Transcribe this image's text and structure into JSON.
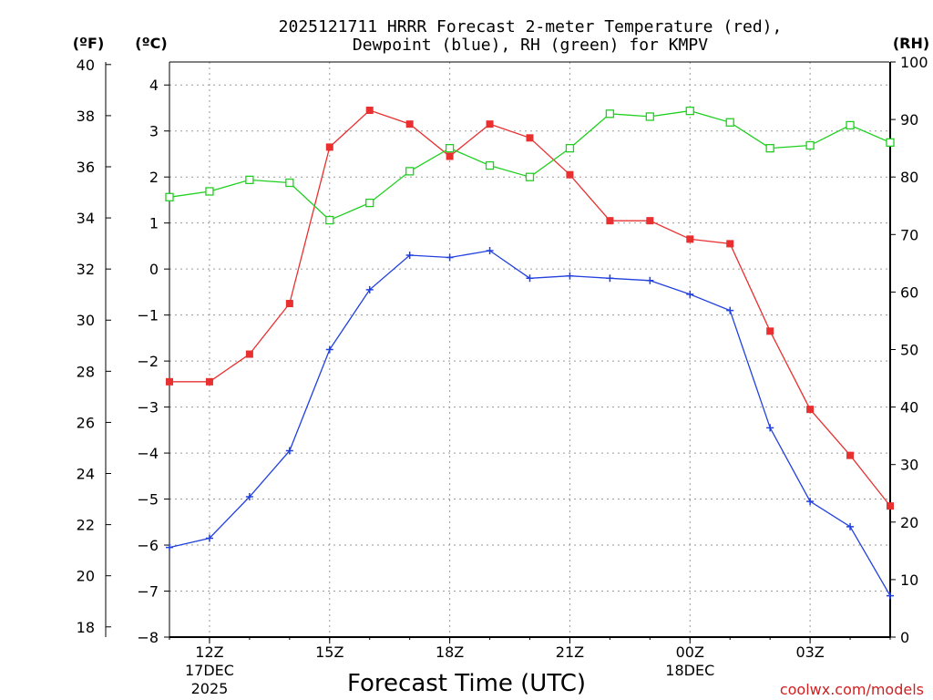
{
  "chart_data": {
    "type": "line",
    "title_line1": "2025121711 HRRR Forecast 2-meter Temperature (red),",
    "title_line2": "Dewpoint (blue), RH (green) for KMPV",
    "left_outer_unit": "(ºF)",
    "left_inner_unit": "(ºC)",
    "right_unit": "(RH)",
    "xlabel": "Forecast Time (UTC)",
    "credit": "coolwx.com/models",
    "xlim": [
      11,
      29
    ],
    "ylim_c": [
      -8,
      4.5
    ],
    "ylim_rh": [
      0,
      100
    ],
    "celsius_ticks": [
      "4",
      "3",
      "2",
      "1",
      "0",
      "−1",
      "−2",
      "−3",
      "−4",
      "−5",
      "−6",
      "−7",
      "−8"
    ],
    "fahrenheit_ticks": [
      "40",
      "38",
      "36",
      "34",
      "32",
      "30",
      "28",
      "26",
      "24",
      "22",
      "20",
      "18"
    ],
    "rh_ticks": [
      "100",
      "90",
      "80",
      "70",
      "60",
      "50",
      "40",
      "30",
      "20",
      "10",
      "0"
    ],
    "x_ticks": [
      {
        "hour": 12,
        "label": "12Z",
        "sub1": "17DEC",
        "sub2": "2025"
      },
      {
        "hour": 15,
        "label": "15Z",
        "sub1": "",
        "sub2": ""
      },
      {
        "hour": 18,
        "label": "18Z",
        "sub1": "",
        "sub2": ""
      },
      {
        "hour": 21,
        "label": "21Z",
        "sub1": "",
        "sub2": ""
      },
      {
        "hour": 24,
        "label": "00Z",
        "sub1": "18DEC",
        "sub2": ""
      },
      {
        "hour": 27,
        "label": "03Z",
        "sub1": "",
        "sub2": ""
      }
    ],
    "hours": [
      11,
      12,
      13,
      14,
      15,
      16,
      17,
      18,
      19,
      20,
      21,
      22,
      23,
      24,
      25,
      26,
      27,
      28,
      29
    ],
    "series": [
      {
        "name": "Temperature",
        "color": "#e83030",
        "unit": "C",
        "marker": "filled-square",
        "values": [
          -2.45,
          -2.45,
          -1.85,
          -0.75,
          2.65,
          3.45,
          3.15,
          2.45,
          3.15,
          2.85,
          2.05,
          1.05,
          1.05,
          0.65,
          0.55,
          -1.35,
          -3.05,
          -4.05,
          -5.15
        ]
      },
      {
        "name": "Dewpoint",
        "color": "#2040e0",
        "unit": "C",
        "marker": "plus",
        "values": [
          -6.05,
          -5.85,
          -4.95,
          -3.95,
          -1.75,
          -0.45,
          0.3,
          0.25,
          0.4,
          -0.2,
          -0.15,
          -0.2,
          -0.25,
          -0.55,
          -0.9,
          -3.45,
          -5.05,
          -5.6,
          -7.1
        ]
      },
      {
        "name": "Relative Humidity",
        "color": "#20d020",
        "unit": "%",
        "marker": "open-square",
        "values": [
          76.5,
          77.5,
          79.5,
          79,
          72.5,
          75.5,
          81,
          85,
          82,
          80,
          85,
          91,
          90.5,
          91.5,
          89.5,
          85,
          85.5,
          89,
          86
        ]
      }
    ]
  }
}
